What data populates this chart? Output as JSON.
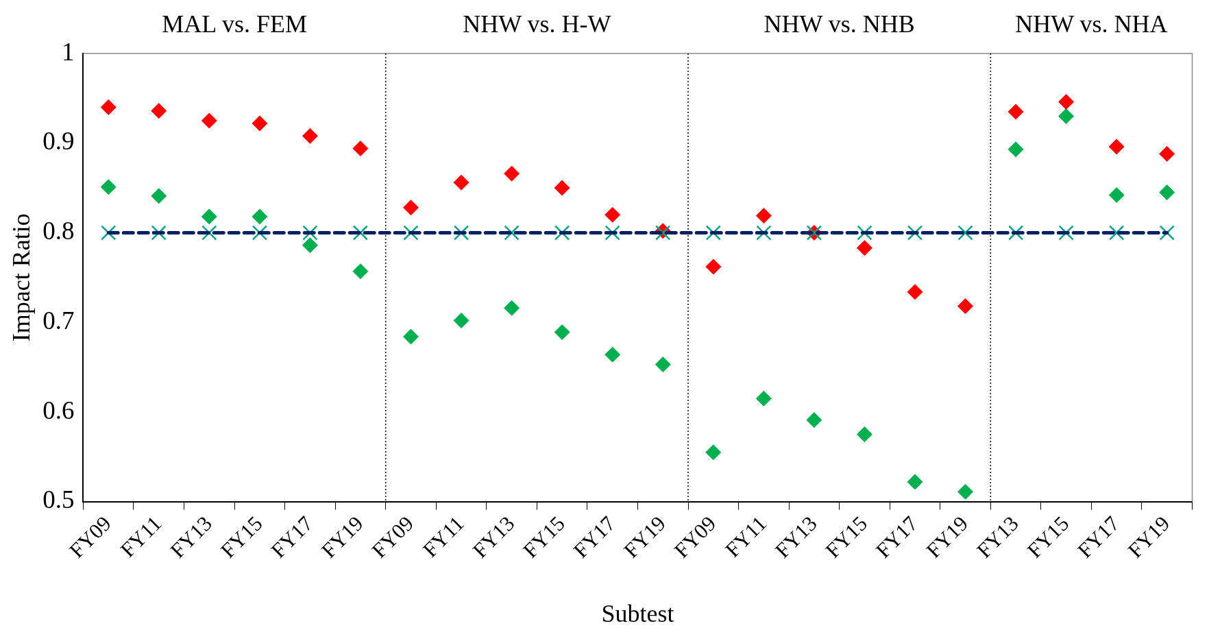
{
  "chart_data": {
    "type": "scatter",
    "xlabel": "Subtest",
    "ylabel": "Impact Ratio",
    "categories": [
      "FY09",
      "FY11",
      "FY13",
      "FY15",
      "FY17",
      "FY19",
      "FY09",
      "FY11",
      "FY13",
      "FY15",
      "FY17",
      "FY19",
      "FY09",
      "FY11",
      "FY13",
      "FY15",
      "FY17",
      "FY19",
      "FY13",
      "FY15",
      "FY17",
      "FY19"
    ],
    "series": [
      {
        "color": "#ff0000",
        "marker": "diamond",
        "values": [
          0.94,
          0.936,
          0.925,
          0.922,
          0.908,
          0.894,
          0.828,
          0.856,
          0.866,
          0.85,
          0.82,
          0.802,
          0.762,
          0.819,
          0.8,
          0.783,
          0.734,
          0.718,
          0.935,
          0.946,
          0.896,
          0.888
        ]
      },
      {
        "color": "#00b050",
        "marker": "diamond",
        "values": [
          0.851,
          0.841,
          0.818,
          0.818,
          0.786,
          0.757,
          0.684,
          0.702,
          0.716,
          0.689,
          0.664,
          0.653,
          0.555,
          0.615,
          0.591,
          0.575,
          0.522,
          0.511,
          0.893,
          0.93,
          0.842,
          0.845
        ]
      },
      {
        "color": "#00a08a",
        "marker": "cross",
        "values": [
          0.8,
          0.8,
          0.8,
          0.8,
          0.8,
          0.8,
          0.8,
          0.8,
          0.8,
          0.8,
          0.8,
          0.8,
          0.8,
          0.8,
          0.8,
          0.8,
          0.8,
          0.8,
          0.8,
          0.8,
          0.8,
          0.8
        ]
      }
    ],
    "ylim": [
      0.5,
      1
    ],
    "yticks": [
      0.5,
      0.6,
      0.7,
      0.8,
      0.9,
      1
    ],
    "ref_lines": [
      {
        "axis": "y",
        "value": 0.8,
        "color": "#002060",
        "line_style": "dashed"
      }
    ],
    "annotations": [
      "MAL vs. FEM",
      "NHW vs. H-W",
      "NHW vs. NHB",
      "NHW vs. NHA"
    ]
  }
}
